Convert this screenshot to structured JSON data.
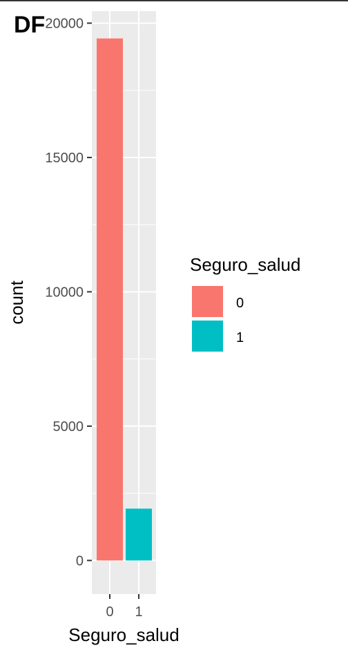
{
  "chart_data": {
    "type": "bar",
    "tag": "DF",
    "categories": [
      "0",
      "1"
    ],
    "values": [
      19430,
      1930
    ],
    "xlabel": "Seguro_salud",
    "ylabel": "count",
    "ylim": [
      -1250,
      20450
    ],
    "yticks": [
      0,
      5000,
      10000,
      15000,
      20000
    ],
    "ytick_labels": [
      "0",
      "5000",
      "10000",
      "15000",
      "20000"
    ],
    "y_minor_ticks": [
      2500,
      7500,
      12500,
      17500
    ],
    "grid": true,
    "legend": {
      "title": "Seguro_salud",
      "position": "right",
      "items": [
        {
          "label": "0",
          "color": "#F8766D"
        },
        {
          "label": "1",
          "color": "#00BFC4"
        }
      ]
    },
    "colors": {
      "panel": "#EBEBEB",
      "grid_major": "#FFFFFF",
      "tick": "#333333",
      "tick_text": "#4D4D4D"
    }
  }
}
